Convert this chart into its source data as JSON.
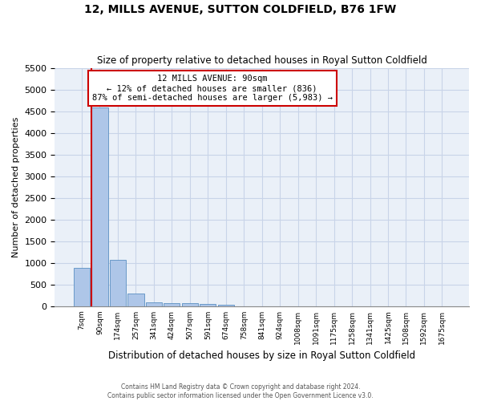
{
  "title": "12, MILLS AVENUE, SUTTON COLDFIELD, B76 1FW",
  "subtitle": "Size of property relative to detached houses in Royal Sutton Coldfield",
  "xlabel": "Distribution of detached houses by size in Royal Sutton Coldfield",
  "ylabel": "Number of detached properties",
  "footer_line1": "Contains HM Land Registry data © Crown copyright and database right 2024.",
  "footer_line2": "Contains public sector information licensed under the Open Government Licence v3.0.",
  "annotation_title": "12 MILLS AVENUE: 90sqm",
  "annotation_line1": "← 12% of detached houses are smaller (836)",
  "annotation_line2": "87% of semi-detached houses are larger (5,983) →",
  "bar_labels": [
    "7sqm",
    "90sqm",
    "174sqm",
    "257sqm",
    "341sqm",
    "424sqm",
    "507sqm",
    "591sqm",
    "674sqm",
    "758sqm",
    "841sqm",
    "924sqm",
    "1008sqm",
    "1091sqm",
    "1175sqm",
    "1258sqm",
    "1341sqm",
    "1425sqm",
    "1508sqm",
    "1592sqm",
    "1675sqm"
  ],
  "bar_values": [
    880,
    4580,
    1060,
    290,
    95,
    75,
    60,
    50,
    40,
    0,
    0,
    0,
    0,
    0,
    0,
    0,
    0,
    0,
    0,
    0,
    0
  ],
  "bar_color": "#aec6e8",
  "bar_edge_color": "#5a8fc2",
  "red_line_color": "#cc0000",
  "annotation_box_color": "#cc0000",
  "grid_color": "#c8d4e8",
  "background_color": "#eaf0f8",
  "ylim": [
    0,
    5500
  ],
  "yticks": [
    0,
    500,
    1000,
    1500,
    2000,
    2500,
    3000,
    3500,
    4000,
    4500,
    5000,
    5500
  ]
}
